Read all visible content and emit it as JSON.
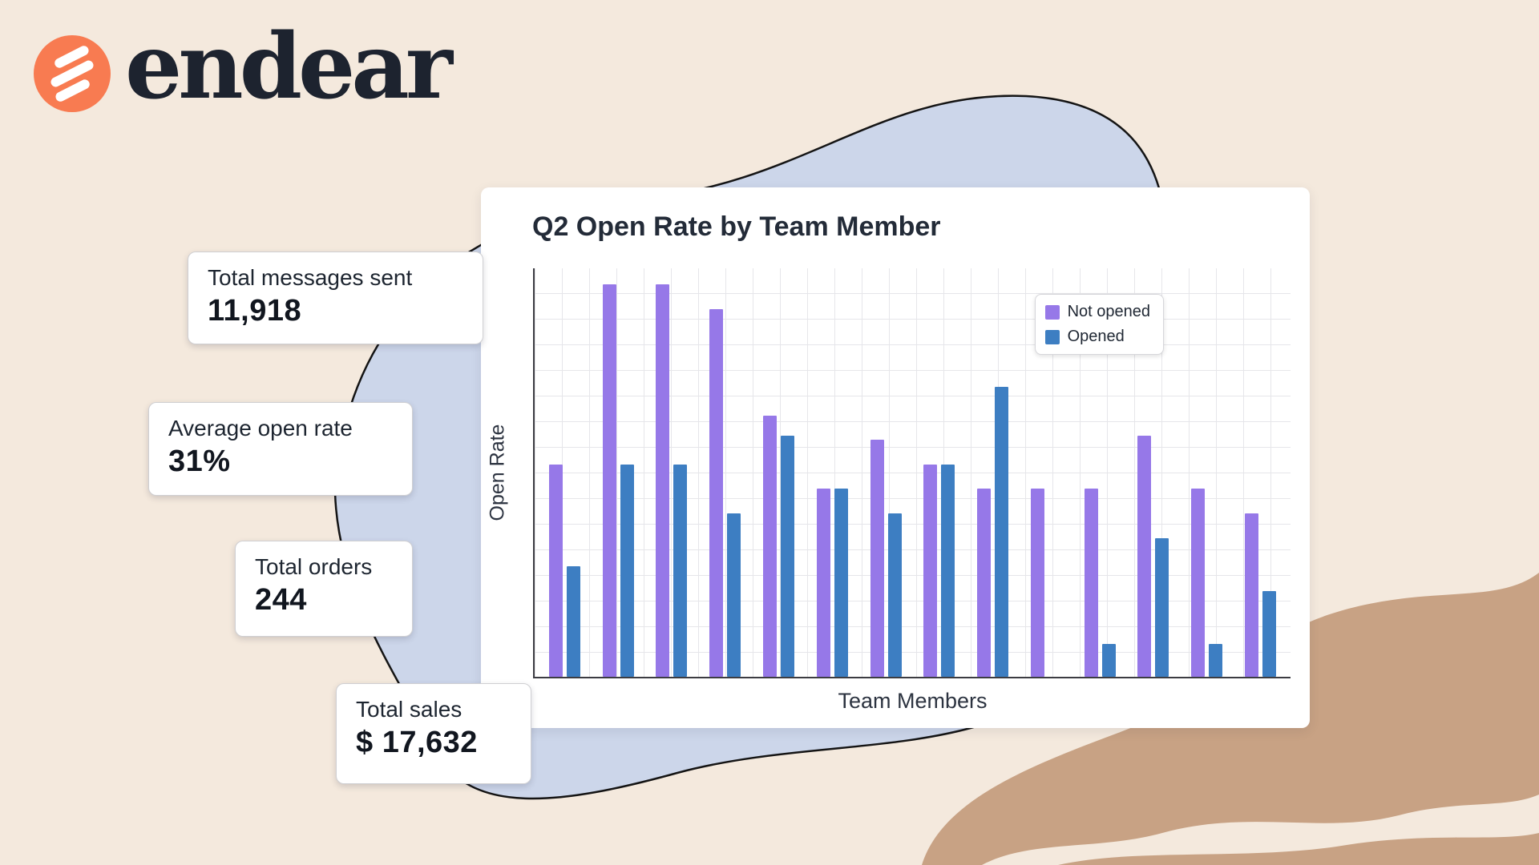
{
  "logo": {
    "brand": "endear"
  },
  "stats": [
    {
      "label": "Total messages sent",
      "value": "11,918"
    },
    {
      "label": "Average open rate",
      "value": "31%"
    },
    {
      "label": "Total orders",
      "value": "244"
    },
    {
      "label": "Total sales",
      "value": "$ 17,632"
    }
  ],
  "chart_data": {
    "type": "bar",
    "title": "Q2 Open Rate by Team Member",
    "xlabel": "Team Members",
    "ylabel": "Open Rate",
    "ylim": [
      0,
      100
    ],
    "grid": true,
    "legend_position": "top-right",
    "num_groups": 14,
    "categories": [
      "",
      "",
      "",
      "",
      "",
      "",
      "",
      "",
      "",
      "",
      "",
      "",
      "",
      ""
    ],
    "series": [
      {
        "name": "Not opened",
        "color": "#9678e8",
        "values": [
          52,
          96,
          96,
          90,
          64,
          46,
          58,
          52,
          46,
          46,
          46,
          59,
          46,
          40
        ]
      },
      {
        "name": "Opened",
        "color": "#3d7ec2",
        "values": [
          27,
          52,
          52,
          40,
          59,
          46,
          40,
          52,
          71,
          0,
          8,
          34,
          8,
          21
        ]
      }
    ]
  },
  "colors": {
    "background": "#f4e9dd",
    "blob_blue": "#ccd6ea",
    "blob_outline": "#141414",
    "blob_tan": "#c8a284",
    "logo_orange": "#f87b51",
    "card_white": "#ffffff"
  }
}
